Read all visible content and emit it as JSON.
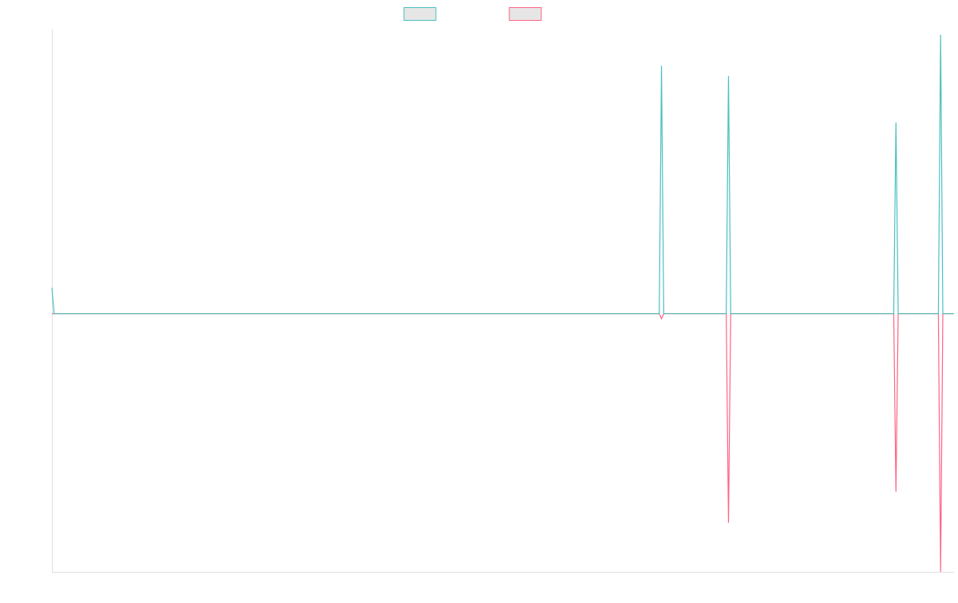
{
  "chart_data": {
    "type": "line",
    "title": "",
    "xlabel": "",
    "ylabel": "",
    "grid": false,
    "legend": {
      "position": "top-center"
    },
    "x_count": 405,
    "ylim": [
      -1.0,
      1.1
    ],
    "series": [
      {
        "color": "#4bc0c0",
        "baseline": 0,
        "points": [
          {
            "i": 0,
            "v": 0.1
          },
          {
            "i": 1,
            "v": 0
          },
          {
            "i": 272,
            "v": 0
          },
          {
            "i": 273,
            "v": 0.96
          },
          {
            "i": 274,
            "v": 0
          },
          {
            "i": 302,
            "v": 0
          },
          {
            "i": 303,
            "v": 0.92
          },
          {
            "i": 304,
            "v": 0
          },
          {
            "i": 377,
            "v": 0
          },
          {
            "i": 378,
            "v": 0.74
          },
          {
            "i": 379,
            "v": 0
          },
          {
            "i": 397,
            "v": 0
          },
          {
            "i": 398,
            "v": 1.08
          },
          {
            "i": 399,
            "v": 0
          },
          {
            "i": 404,
            "v": 0
          }
        ]
      },
      {
        "color": "#ff6384",
        "baseline": 0,
        "points": [
          {
            "i": 0,
            "v": 0
          },
          {
            "i": 272,
            "v": 0
          },
          {
            "i": 273,
            "v": -0.02
          },
          {
            "i": 274,
            "v": 0
          },
          {
            "i": 302,
            "v": 0
          },
          {
            "i": 303,
            "v": -0.81
          },
          {
            "i": 304,
            "v": 0
          },
          {
            "i": 377,
            "v": 0
          },
          {
            "i": 378,
            "v": -0.69
          },
          {
            "i": 379,
            "v": 0
          },
          {
            "i": 397,
            "v": 0
          },
          {
            "i": 398,
            "v": -1.0
          },
          {
            "i": 399,
            "v": 0
          },
          {
            "i": 404,
            "v": 0
          }
        ]
      }
    ]
  },
  "legend_fill": "#e6e6e6",
  "axis_color": "#e0e0e0"
}
